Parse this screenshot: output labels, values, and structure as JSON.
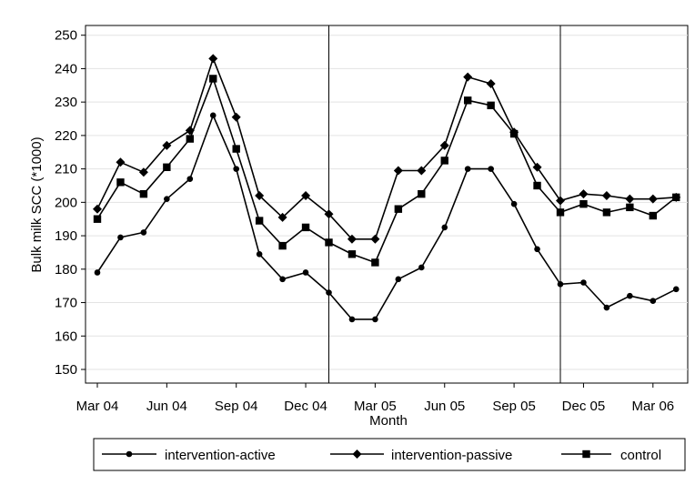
{
  "chart_data": {
    "type": "line",
    "xlabel": "Month",
    "ylabel": "Bulk milk SCC (*1000)",
    "ylim": [
      145,
      252
    ],
    "yticks": [
      150,
      160,
      170,
      180,
      190,
      200,
      210,
      220,
      230,
      240,
      250
    ],
    "x_tick_labels": [
      "Mar 04",
      "Jun 04",
      "Sep 04",
      "Dec 04",
      "Mar 05",
      "Jun 05",
      "Sep 05",
      "Dec 05",
      "Mar 06"
    ],
    "x_tick_dates": [
      "2004-03",
      "2004-06",
      "2004-09",
      "2004-12",
      "2005-03",
      "2005-06",
      "2005-09",
      "2005-12",
      "2006-03"
    ],
    "x": [
      "2004-03",
      "2004-04",
      "2004-05",
      "2004-06",
      "2004-07",
      "2004-08",
      "2004-09",
      "2004-10",
      "2004-11",
      "2004-12",
      "2005-01",
      "2005-02",
      "2005-03",
      "2005-04",
      "2005-05",
      "2005-06",
      "2005-07",
      "2005-08",
      "2005-09",
      "2005-10",
      "2005-11",
      "2005-12",
      "2006-01",
      "2006-02",
      "2006-03",
      "2006-04"
    ],
    "vertical_lines": [
      "2005-01",
      "2005-11"
    ],
    "grid": "horizontal",
    "legend_position": "bottom",
    "series": [
      {
        "name": "intervention-active",
        "marker": "circle",
        "values": [
          179,
          189.5,
          191,
          201,
          207,
          226,
          210,
          184.5,
          177,
          179,
          173,
          165,
          165,
          177,
          180.5,
          192.5,
          210,
          210,
          199.5,
          186,
          175.5,
          176,
          168.5,
          172,
          170.5,
          174
        ]
      },
      {
        "name": "intervention-passive",
        "marker": "diamond",
        "values": [
          198,
          212,
          209,
          217,
          221.5,
          243,
          225.5,
          202,
          195.5,
          202,
          196.5,
          189,
          189,
          209.5,
          209.5,
          217,
          237.5,
          235.5,
          221,
          210.5,
          200.5,
          202.5,
          202,
          201,
          201,
          201.5
        ]
      },
      {
        "name": "control",
        "marker": "square",
        "values": [
          195,
          206,
          202.5,
          210.5,
          219,
          237,
          216,
          194.5,
          187,
          192.5,
          188,
          184.5,
          182,
          198,
          202.5,
          212.5,
          230.5,
          229,
          220.5,
          205,
          197,
          199.5,
          197,
          198.5,
          196,
          201.5
        ]
      }
    ]
  }
}
